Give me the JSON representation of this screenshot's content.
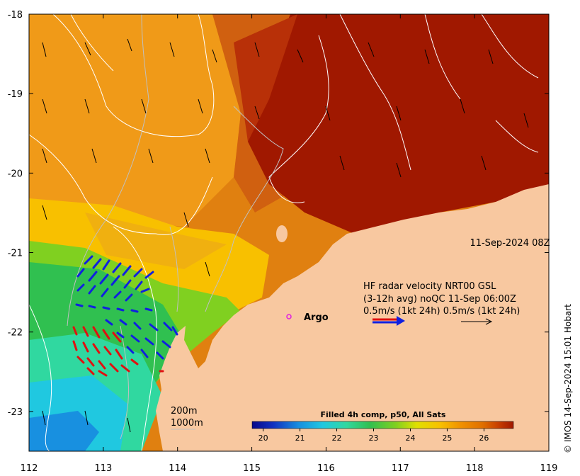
{
  "map": {
    "lon_ticks": [
      "112",
      "113",
      "114",
      "115",
      "116",
      "117",
      "118",
      "119"
    ],
    "lat_ticks": [
      "-18",
      "-19",
      "-20",
      "-21",
      "-22",
      "-23"
    ],
    "lon_range": [
      112,
      119
    ],
    "lat_range": [
      -23.5,
      -18
    ],
    "timestamp": "11-Sep-2024 08Z",
    "argo_label": "Argo",
    "isobath_label_1": "200m",
    "isobath_label_2": "1000m",
    "colors": {
      "land": "#f8c8a0",
      "hot": "#a01800",
      "radar_blue": "#1020e0",
      "radar_red": "#e01010",
      "argo_marker": "#e020e0"
    }
  },
  "legend": {
    "line1": "HF radar velocity  NRT00 GSL",
    "line2": "(3-12h avg) noQC 11-Sep 06:00Z",
    "line3": "0.5m/s (1kt 24h)  0.5m/s (1kt 24h)"
  },
  "colorbar": {
    "title": "Filled 4h comp, p50, All Sats",
    "ticks": [
      "20",
      "21",
      "22",
      "23",
      "24",
      "25",
      "26"
    ],
    "range": [
      19.7,
      26.8
    ],
    "colors": [
      "#08088a",
      "#1030c0",
      "#1890e0",
      "#20c8e0",
      "#30d8a0",
      "#30c050",
      "#80d020",
      "#e0e000",
      "#f8c000",
      "#f09000",
      "#e07000",
      "#c84000",
      "#a01800"
    ]
  },
  "credit": "© IMOS 14-Sep-2024 15:01 Hobart"
}
